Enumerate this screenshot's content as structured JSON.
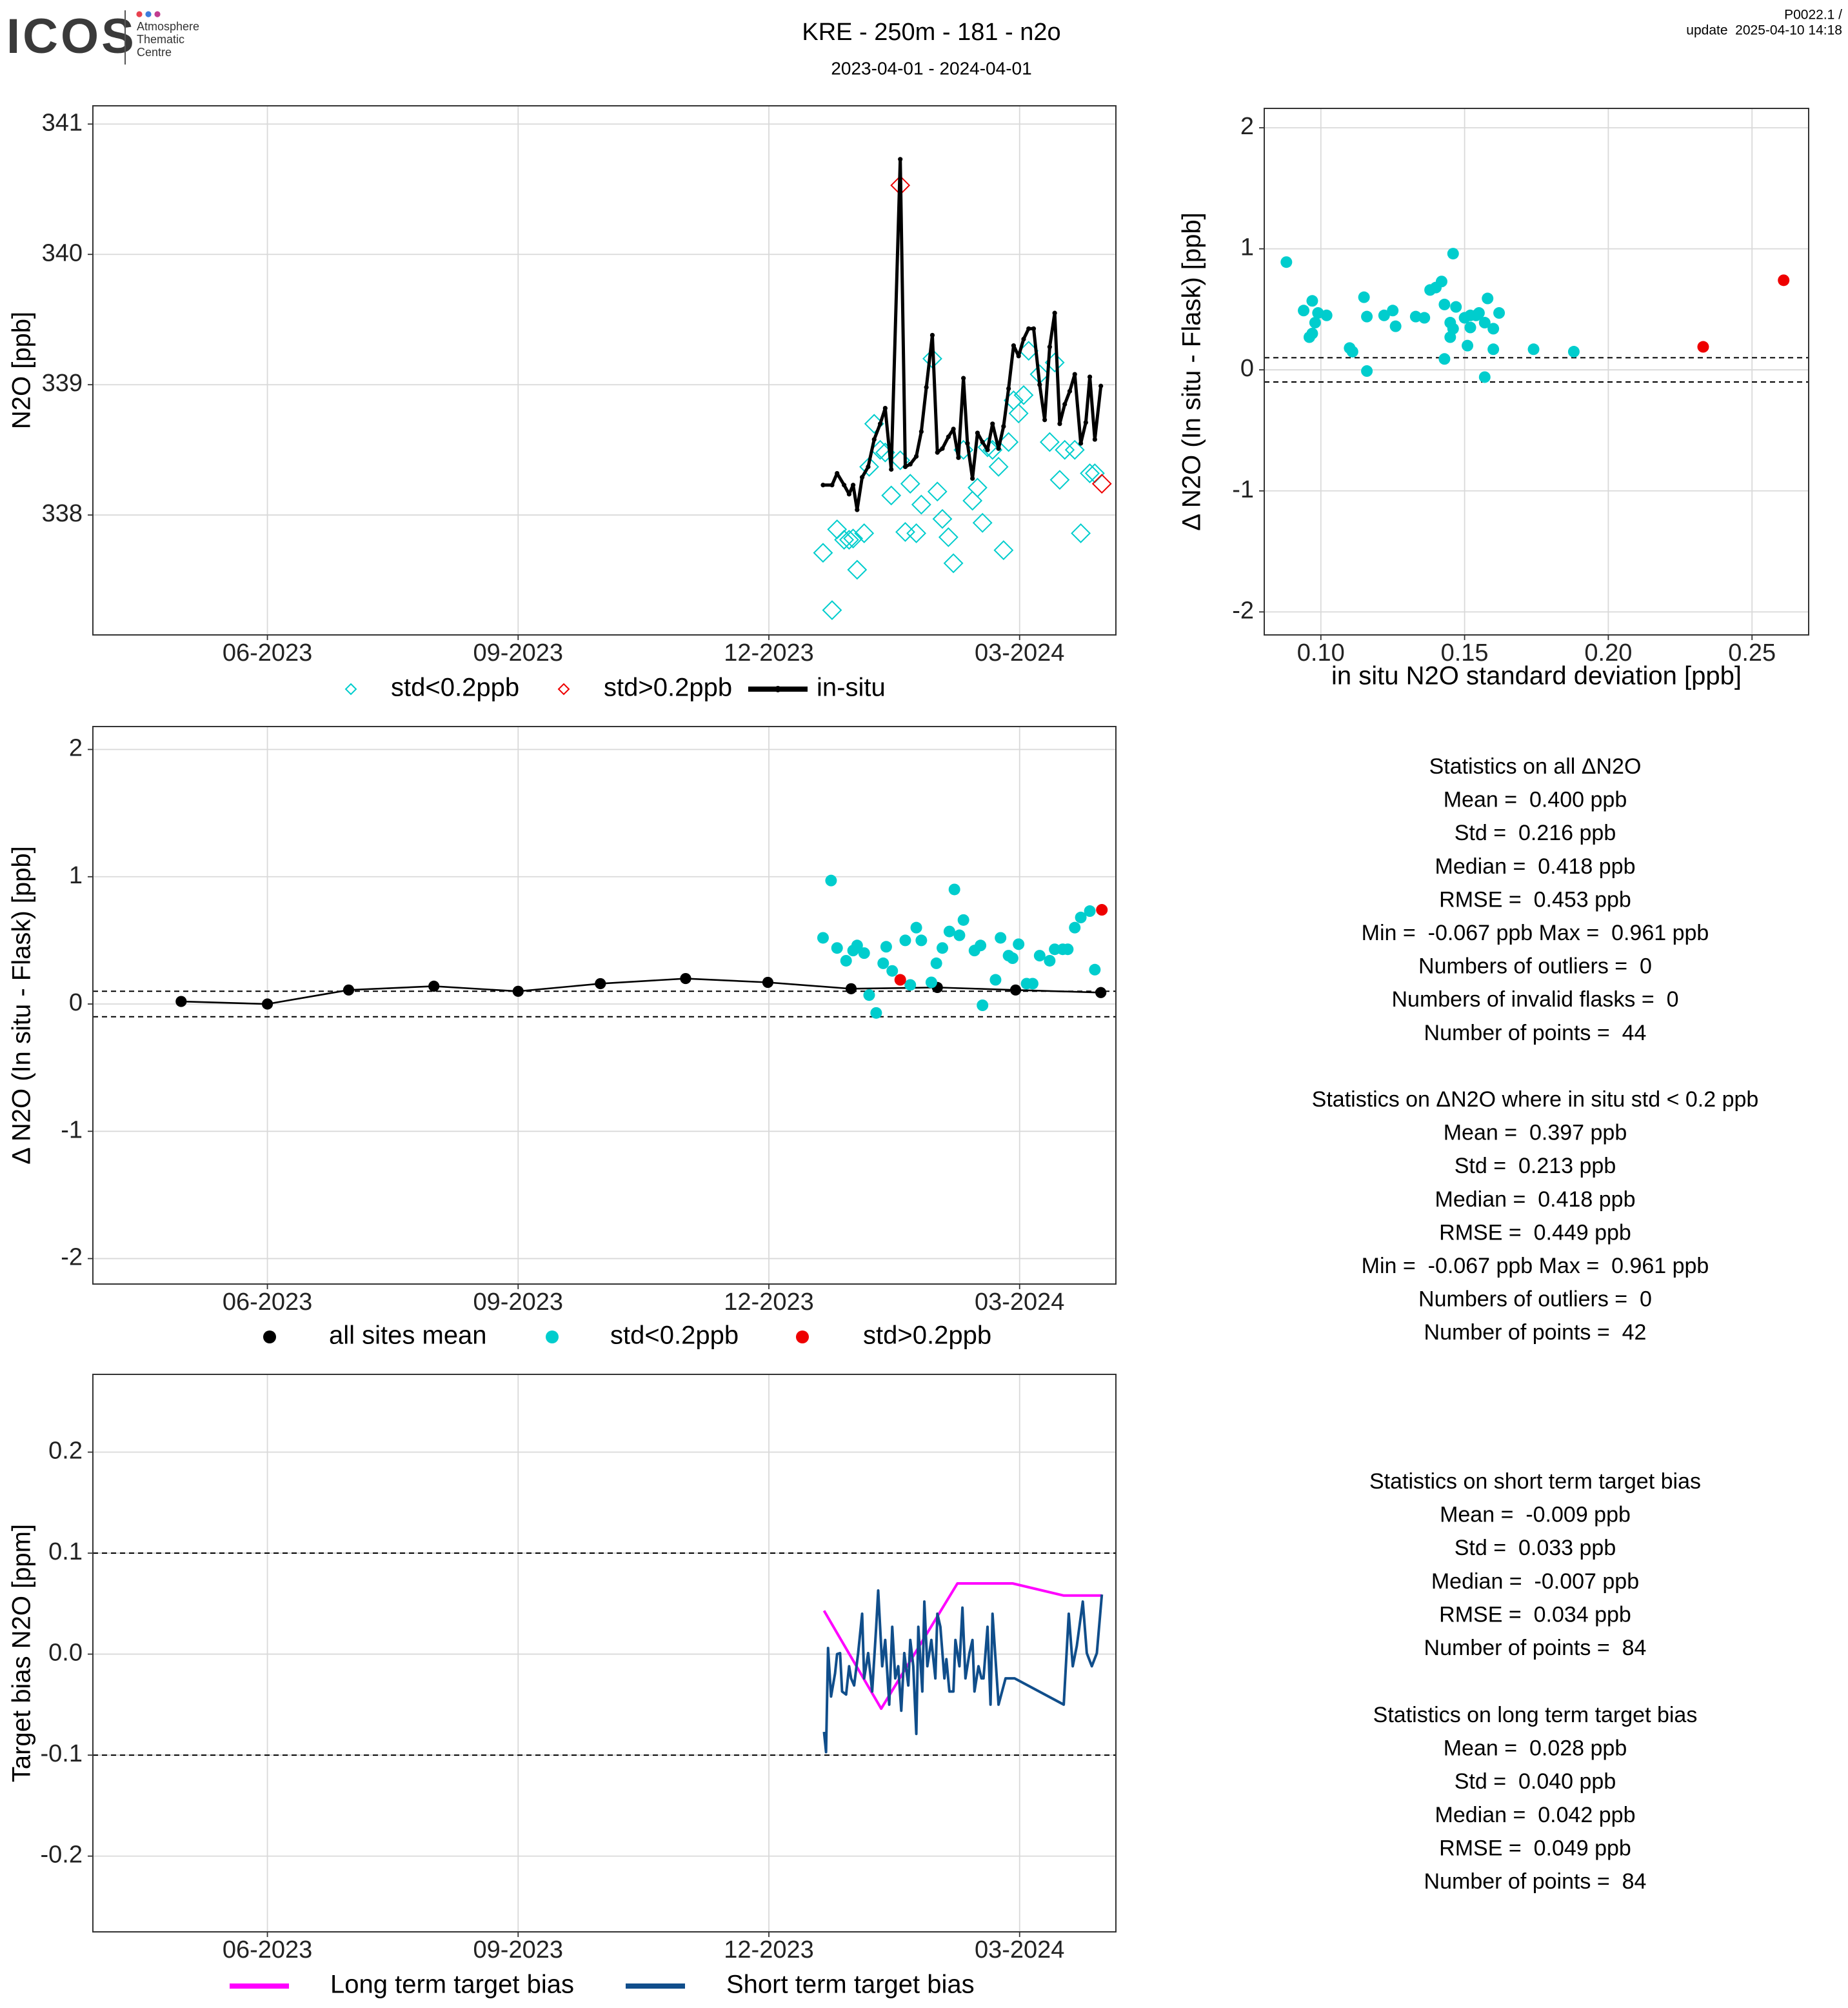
{
  "header": {
    "logo": "ICOS",
    "logo_subtitle": [
      "Atmosphere",
      "Thematic",
      "Centre"
    ],
    "title": "KRE - 250m - 181 - n2o",
    "subtitle": "2023-04-01 - 2024-04-01",
    "version": "P0022.1 /",
    "update": "update  2025-04-10 14:18"
  },
  "chart_data": [
    {
      "type": "line",
      "ylabel": "N2O [ppb]",
      "grid": true,
      "xlim": [
        2023.243,
        2024.263
      ],
      "xticks": [
        {
          "value": 2023.417,
          "label": "06-2023"
        },
        {
          "value": 2023.667,
          "label": "09-2023"
        },
        {
          "value": 2023.917,
          "label": "12-2023"
        },
        {
          "value": 2024.167,
          "label": "03-2024"
        }
      ],
      "ylim": [
        337.08,
        341.14
      ],
      "yticks": [
        338,
        339,
        340,
        341
      ],
      "series": [
        {
          "name": "std<0.2ppb",
          "type": "scatter",
          "marker": "diamond",
          "color": "#00CDCD",
          "x": [
            2023.971,
            2023.98,
            2023.985,
            2023.992,
            2023.997,
            2024.001,
            2024.005,
            2024.012,
            2024.017,
            2024.022,
            2024.028,
            2024.033,
            2024.039,
            2024.048,
            2024.053,
            2024.058,
            2024.064,
            2024.069,
            2024.08,
            2024.085,
            2024.09,
            2024.096,
            2024.101,
            2024.111,
            2024.12,
            2024.125,
            2024.13,
            2024.135,
            2024.14,
            2024.146,
            2024.151,
            2024.156,
            2024.161,
            2024.166,
            2024.171,
            2024.176,
            2024.187,
            2024.197,
            2024.202,
            2024.207,
            2024.212,
            2024.222,
            2024.228,
            2024.237,
            2024.242
          ],
          "values": [
            337.71,
            337.27,
            337.89,
            337.81,
            337.81,
            337.82,
            337.58,
            337.86,
            338.37,
            338.7,
            338.5,
            338.48,
            338.15,
            338.42,
            337.87,
            338.24,
            337.86,
            338.08,
            339.2,
            338.18,
            337.97,
            337.83,
            337.63,
            338.5,
            338.11,
            338.21,
            337.94,
            338.52,
            338.5,
            338.37,
            337.73,
            338.56,
            338.88,
            338.78,
            338.92,
            339.26,
            339.08,
            338.56,
            339.17,
            338.27,
            338.5,
            338.5,
            337.86,
            338.32,
            338.32
          ]
        },
        {
          "name": "std>0.2ppb",
          "type": "scatter",
          "marker": "diamond",
          "color": "#EE0000",
          "x": [
            2024.048,
            2024.249
          ],
          "values": [
            340.53,
            338.24
          ]
        },
        {
          "name": "in-situ",
          "type": "line",
          "marker": "circle",
          "color": "#000000",
          "x": [
            2023.971,
            2023.98,
            2023.985,
            2023.992,
            2023.997,
            2024.001,
            2024.005,
            2024.01,
            2024.016,
            2024.022,
            2024.028,
            2024.033,
            2024.039,
            2024.048,
            2024.053,
            2024.058,
            2024.064,
            2024.069,
            2024.074,
            2024.08,
            2024.085,
            2024.09,
            2024.096,
            2024.101,
            2024.106,
            2024.111,
            2024.115,
            2024.12,
            2024.125,
            2024.13,
            2024.135,
            2024.14,
            2024.146,
            2024.151,
            2024.156,
            2024.161,
            2024.166,
            2024.171,
            2024.176,
            2024.181,
            2024.187,
            2024.192,
            2024.197,
            2024.202,
            2024.207,
            2024.212,
            2024.217,
            2024.222,
            2024.228,
            2024.233,
            2024.237,
            2024.242,
            2024.248
          ],
          "values": [
            338.23,
            338.23,
            338.32,
            338.23,
            338.16,
            338.23,
            338.04,
            338.29,
            338.37,
            338.58,
            338.7,
            338.82,
            338.35,
            340.73,
            338.37,
            338.39,
            338.45,
            338.64,
            338.98,
            339.38,
            338.48,
            338.51,
            338.6,
            338.66,
            338.44,
            339.05,
            338.55,
            338.28,
            338.63,
            338.56,
            338.5,
            338.7,
            338.51,
            338.68,
            338.97,
            339.3,
            339.22,
            339.35,
            339.43,
            339.43,
            339.0,
            338.73,
            339.29,
            339.55,
            338.7,
            338.85,
            338.95,
            339.08,
            338.55,
            338.71,
            339.06,
            338.58,
            338.99
          ]
        }
      ]
    },
    {
      "type": "scatter",
      "ylabel": "Δ N2O (In situ - Flask) [ppb]",
      "xlabel": "in situ N2O standard deviation [ppb]",
      "grid": true,
      "xlim": [
        0.0803,
        0.2697
      ],
      "xticks": [
        {
          "value": 0.1,
          "label": "0.10"
        },
        0.15,
        {
          "value": 0.2,
          "label": "0.20"
        },
        0.25
      ],
      "ylim": [
        -2.19,
        2.16
      ],
      "yticks": [
        -2,
        -1,
        0,
        1,
        2
      ],
      "hlines": [
        0.1,
        -0.1
      ],
      "series": [
        {
          "type": "scatter",
          "marker": "circle",
          "color": "#00CDCD",
          "x": [
            0.088,
            0.094,
            0.097,
            0.096,
            0.097,
            0.099,
            0.102,
            0.098,
            0.11,
            0.111,
            0.115,
            0.116,
            0.116,
            0.122,
            0.125,
            0.126,
            0.133,
            0.136,
            0.138,
            0.14,
            0.142,
            0.143,
            0.143,
            0.145,
            0.146,
            0.145,
            0.147,
            0.146,
            0.15,
            0.151,
            0.152,
            0.154,
            0.155,
            0.152,
            0.158,
            0.157,
            0.157,
            0.16,
            0.162,
            0.16,
            0.174,
            0.188
          ],
          "values": [
            0.89,
            0.49,
            0.57,
            0.27,
            0.3,
            0.47,
            0.45,
            0.39,
            0.18,
            0.15,
            0.6,
            0.44,
            -0.01,
            0.45,
            0.49,
            0.36,
            0.44,
            0.43,
            0.66,
            0.68,
            0.73,
            0.54,
            0.09,
            0.39,
            0.96,
            0.27,
            0.52,
            0.34,
            0.43,
            0.2,
            0.45,
            0.45,
            0.47,
            0.35,
            0.59,
            0.39,
            -0.06,
            0.17,
            0.47,
            0.34,
            0.17,
            0.15
          ]
        },
        {
          "type": "scatter",
          "marker": "circle",
          "color": "#EE0000",
          "x": [
            0.233,
            0.261
          ],
          "values": [
            0.19,
            0.74
          ]
        }
      ]
    },
    {
      "type": "scatter",
      "ylabel": "Δ N2O (In situ - Flask) [ppb]",
      "grid": true,
      "xlim": [
        2023.243,
        2024.263
      ],
      "xticks": [
        {
          "value": 2023.417,
          "label": "06-2023"
        },
        {
          "value": 2023.667,
          "label": "09-2023"
        },
        {
          "value": 2023.917,
          "label": "12-2023"
        },
        {
          "value": 2024.167,
          "label": "03-2024"
        }
      ],
      "ylim": [
        -2.2,
        2.18
      ],
      "yticks": [
        -2,
        -1,
        0,
        1,
        2
      ],
      "hlines": [
        0.1,
        -0.1
      ],
      "series": [
        {
          "name": "all sites mean",
          "type": "line",
          "marker": "circle",
          "color": "#000000",
          "x": [
            2023.331,
            2023.417,
            2023.498,
            2023.583,
            2023.667,
            2023.749,
            2023.834,
            2023.916,
            2023.999,
            2024.085,
            2024.163,
            2024.248
          ],
          "values": [
            0.02,
            0.0,
            0.11,
            0.14,
            0.1,
            0.16,
            0.2,
            0.17,
            0.12,
            0.13,
            0.11,
            0.09
          ]
        },
        {
          "name": "std<0.2ppb",
          "type": "scatter",
          "marker": "circle",
          "color": "#00CDCD",
          "x": [
            2023.971,
            2023.979,
            2023.985,
            2023.994,
            2024.001,
            2024.005,
            2024.012,
            2024.017,
            2024.024,
            2024.031,
            2024.034,
            2024.04,
            2024.053,
            2024.058,
            2024.064,
            2024.069,
            2024.079,
            2024.084,
            2024.09,
            2024.097,
            2024.102,
            2024.107,
            2024.111,
            2024.122,
            2024.128,
            2024.13,
            2024.143,
            2024.148,
            2024.156,
            2024.16,
            2024.166,
            2024.174,
            2024.18,
            2024.187,
            2024.197,
            2024.202,
            2024.21,
            2024.215,
            2024.222,
            2024.228,
            2024.237,
            2024.242
          ],
          "values": [
            0.52,
            0.97,
            0.44,
            0.34,
            0.42,
            0.46,
            0.4,
            0.07,
            -0.07,
            0.32,
            0.45,
            0.26,
            0.5,
            0.15,
            0.6,
            0.5,
            0.17,
            0.32,
            0.44,
            0.57,
            0.9,
            0.54,
            0.66,
            0.42,
            0.46,
            -0.01,
            0.19,
            0.52,
            0.38,
            0.36,
            0.47,
            0.16,
            0.16,
            0.38,
            0.34,
            0.43,
            0.43,
            0.43,
            0.6,
            0.68,
            0.73,
            0.27
          ]
        },
        {
          "name": "std>0.2ppb",
          "type": "scatter",
          "marker": "circle",
          "color": "#EE0000",
          "x": [
            2024.048,
            2024.249
          ],
          "values": [
            0.19,
            0.74
          ]
        }
      ]
    },
    {
      "type": "line",
      "ylabel": "Target bias N2O [ppm]",
      "grid": true,
      "xlim": [
        2023.243,
        2024.263
      ],
      "xticks": [
        {
          "value": 2023.417,
          "label": "06-2023"
        },
        {
          "value": 2023.667,
          "label": "09-2023"
        },
        {
          "value": 2023.917,
          "label": "12-2023"
        },
        {
          "value": 2024.167,
          "label": "03-2024"
        }
      ],
      "ylim": [
        -0.275,
        0.277
      ],
      "yticks": [
        0.2,
        0.1,
        {
          "value": 0,
          "label": "0.0"
        },
        -0.1,
        -0.2
      ],
      "hlines": [
        0.1,
        -0.1
      ],
      "series": [
        {
          "name": "Long term target bias",
          "type": "line",
          "color": "#FF00FF",
          "x": [
            2023.972,
            2024.029,
            2024.105,
            2024.16,
            2024.211,
            2024.249
          ],
          "values": [
            0.043,
            -0.054,
            0.07,
            0.07,
            0.058,
            0.058
          ]
        },
        {
          "name": "Short term target bias",
          "type": "line",
          "color": "#104E8B",
          "x": [
            2023.972,
            2023.974,
            2023.976,
            2023.979,
            2023.983,
            2023.985,
            2023.988,
            2023.99,
            2023.994,
            2023.997,
            2023.999,
            2024.002,
            2024.006,
            2024.01,
            2024.012,
            2024.016,
            2024.02,
            2024.024,
            2024.026,
            2024.03,
            2024.033,
            2024.037,
            2024.04,
            2024.043,
            2024.046,
            2024.049,
            2024.052,
            2024.056,
            2024.058,
            2024.061,
            2024.064,
            2024.066,
            2024.07,
            2024.072,
            2024.075,
            2024.079,
            2024.083,
            2024.085,
            2024.088,
            2024.092,
            2024.094,
            2024.097,
            2024.101,
            2024.103,
            2024.107,
            2024.11,
            2024.113,
            2024.117,
            2024.12,
            2024.122,
            2024.126,
            2024.129,
            2024.131,
            2024.135,
            2024.138,
            2024.14,
            2024.146,
            2024.153,
            2024.162,
            2024.211,
            2024.216,
            2024.22,
            2024.224,
            2024.23,
            2024.234,
            2024.239,
            2024.244,
            2024.249
          ],
          "values": [
            -0.077,
            -0.097,
            0.006,
            -0.042,
            -0.019,
            0.0,
            0.001,
            -0.037,
            -0.04,
            -0.012,
            -0.024,
            -0.031,
            0.001,
            0.04,
            -0.024,
            0.001,
            -0.037,
            0.027,
            0.063,
            -0.012,
            0.014,
            -0.05,
            0.027,
            -0.024,
            -0.012,
            -0.056,
            0.001,
            -0.031,
            0.014,
            -0.012,
            -0.079,
            0.027,
            -0.037,
            0.052,
            -0.012,
            0.014,
            -0.024,
            0.04,
            0.027,
            -0.024,
            -0.005,
            -0.037,
            -0.037,
            0.014,
            -0.012,
            0.046,
            -0.024,
            0.001,
            0.014,
            -0.037,
            -0.012,
            -0.024,
            -0.024,
            0.027,
            -0.05,
            0.04,
            -0.05,
            -0.024,
            -0.024,
            -0.05,
            0.04,
            -0.012,
            0.008,
            0.052,
            0.001,
            -0.012,
            0.001,
            0.059
          ]
        }
      ]
    }
  ],
  "statistics": [
    {
      "title": "Statistics on all ΔN2O",
      "lines": [
        "Mean =  0.400 ppb",
        "Std =  0.216 ppb",
        "Median =  0.418 ppb",
        "RMSE =  0.453 ppb",
        "Min =  -0.067 ppb Max =  0.961 ppb",
        "Numbers of outliers =  0",
        "Numbers of invalid flasks =  0",
        "Number of points =  44"
      ]
    },
    {
      "title": "Statistics on ΔN2O where in situ std < 0.2 ppb",
      "lines": [
        "Mean =  0.397 ppb",
        "Std =  0.213 ppb",
        "Median =  0.418 ppb",
        "RMSE =  0.449 ppb",
        "Min =  -0.067 ppb Max =  0.961 ppb",
        "Numbers of outliers =  0",
        "Number of points =  42"
      ]
    },
    {
      "title": "Statistics on short term target bias",
      "lines": [
        "Mean =  -0.009 ppb",
        "Std =  0.033 ppb",
        "Median =  -0.007 ppb",
        "RMSE =  0.034 ppb",
        "Number of points =  84"
      ]
    },
    {
      "title": "Statistics on long term target bias",
      "lines": [
        "Mean =  0.028 ppb",
        "Std =  0.040 ppb",
        "Median =  0.042 ppb",
        "RMSE =  0.049 ppb",
        "Number of points =  84"
      ]
    }
  ]
}
